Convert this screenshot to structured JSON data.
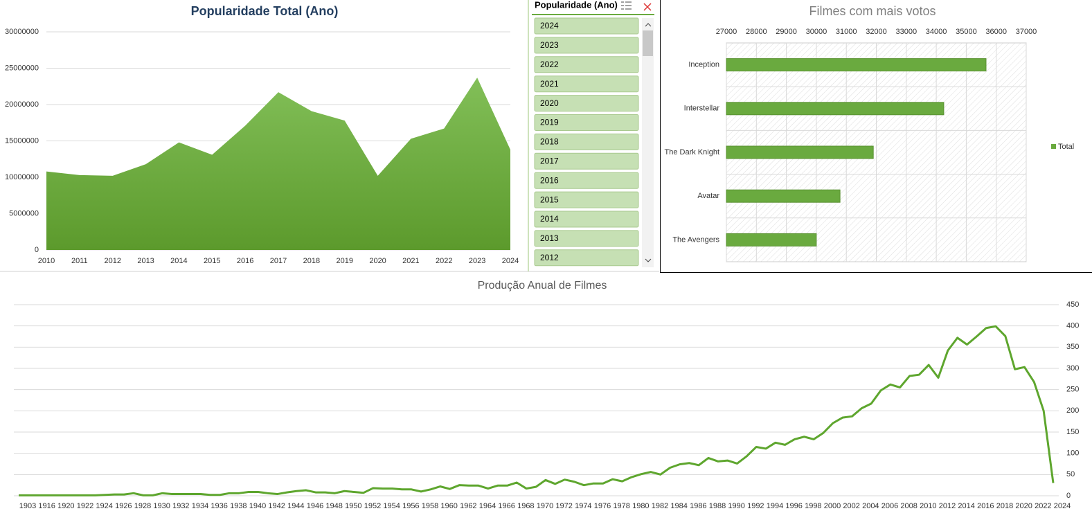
{
  "chart_data": [
    {
      "type": "area",
      "title": "Popularidade Total (Ano)",
      "categories": [
        "2010",
        "2011",
        "2012",
        "2013",
        "2014",
        "2015",
        "2016",
        "2017",
        "2018",
        "2019",
        "2020",
        "2021",
        "2022",
        "2023",
        "2024"
      ],
      "values": [
        10800000,
        10300000,
        10200000,
        11800000,
        14800000,
        13100000,
        17100000,
        21700000,
        19100000,
        17800000,
        10200000,
        15300000,
        16700000,
        23700000,
        13800000
      ],
      "color": "#6aaa3f",
      "ylim": [
        0,
        30000000
      ],
      "yticks": [
        0,
        5000000,
        10000000,
        15000000,
        20000000,
        25000000,
        30000000
      ],
      "grid": true,
      "yaxis_position": "left"
    },
    {
      "type": "bar",
      "orientation": "horizontal",
      "title": "Filmes com mais votos",
      "categories": [
        "Inception",
        "Interstellar",
        "The Dark Knight",
        "Avatar",
        "The Avengers"
      ],
      "series": [
        {
          "name": "Total",
          "color": "#6aaa3f",
          "values": [
            35660,
            34250,
            31900,
            30790,
            30000
          ]
        }
      ],
      "xlim": [
        27000,
        37000
      ],
      "xticks": [
        27000,
        28000,
        29000,
        30000,
        31000,
        32000,
        33000,
        34000,
        35000,
        36000,
        37000
      ],
      "grid": true,
      "legend": "right"
    },
    {
      "type": "line",
      "title": "Produção Anual de Filmes",
      "categories": [
        "1903",
        null,
        "1916",
        null,
        "1920",
        null,
        "1922",
        null,
        "1924",
        null,
        "1926",
        null,
        "1928",
        null,
        "1930",
        null,
        "1932",
        null,
        "1934",
        null,
        "1936",
        null,
        "1938",
        null,
        "1940",
        null,
        "1942",
        null,
        "1944",
        null,
        "1946",
        null,
        "1948",
        null,
        "1950",
        null,
        "1952",
        null,
        "1954",
        null,
        "1956",
        null,
        "1958",
        null,
        "1960",
        null,
        "1962",
        null,
        "1964",
        null,
        "1966",
        null,
        "1968",
        null,
        "1970",
        null,
        "1972",
        null,
        "1974",
        null,
        "1976",
        null,
        "1978",
        null,
        "1980",
        null,
        "1982",
        null,
        "1984",
        null,
        "1986",
        null,
        "1988",
        null,
        "1990",
        null,
        "1992",
        null,
        "1994",
        null,
        "1996",
        null,
        "1998",
        null,
        "2000",
        null,
        "2002",
        null,
        "2004",
        null,
        "2006",
        null,
        "2008",
        null,
        "2010",
        null,
        "2012",
        null,
        "2014",
        null,
        "2016",
        null,
        "2018",
        null,
        "2020",
        null,
        "2022",
        null,
        "2024"
      ],
      "values": [
        1,
        1,
        1,
        1,
        1,
        1,
        1,
        1,
        1,
        2,
        3,
        3,
        6,
        1,
        1,
        6,
        4,
        4,
        4,
        4,
        2,
        2,
        6,
        6,
        9,
        9,
        6,
        4,
        8,
        11,
        13,
        8,
        8,
        6,
        11,
        9,
        7,
        18,
        17,
        17,
        15,
        15,
        10,
        15,
        22,
        16,
        25,
        24,
        24,
        17,
        24,
        24,
        31,
        17,
        21,
        37,
        28,
        38,
        33,
        25,
        29,
        29,
        39,
        34,
        44,
        51,
        56,
        50,
        66,
        74,
        77,
        72,
        89,
        81,
        83,
        76,
        93,
        115,
        111,
        125,
        120,
        133,
        139,
        133,
        148,
        171,
        184,
        187,
        206,
        217,
        248,
        262,
        255,
        282,
        285,
        308,
        278,
        342,
        372,
        356,
        375,
        395,
        399,
        376,
        298,
        303,
        268,
        200,
        30
      ],
      "color": "#5ea62e",
      "ylim": [
        0,
        450
      ],
      "yticks": [
        0,
        50,
        100,
        150,
        200,
        250,
        300,
        350,
        400,
        450
      ],
      "grid": true,
      "yaxis_position": "right"
    }
  ],
  "slicer": {
    "title": "Popularidade (Ano)",
    "items": [
      "2024",
      "2023",
      "2022",
      "2021",
      "2020",
      "2019",
      "2018",
      "2017",
      "2016",
      "2015",
      "2014",
      "2013",
      "2012"
    ]
  }
}
